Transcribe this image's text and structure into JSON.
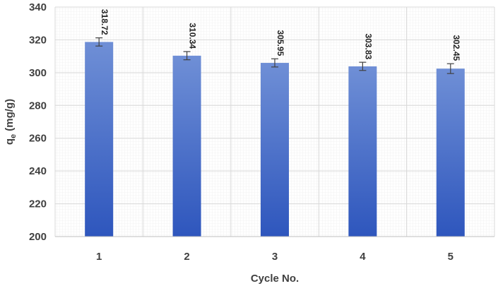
{
  "chart_data": {
    "type": "bar",
    "title": "",
    "xlabel": "Cycle No.",
    "ylabel": {
      "main": "q",
      "sub": "e",
      "rest": " (mg/g)"
    },
    "categories": [
      "1",
      "2",
      "3",
      "4",
      "5"
    ],
    "values": [
      318.72,
      310.34,
      305.95,
      303.83,
      302.45
    ],
    "data_labels": [
      "318.72",
      "310.34",
      "305.95",
      "303.83",
      "302.45"
    ],
    "error": [
      2.5,
      2.5,
      2.5,
      2.5,
      3.0
    ],
    "ylim": [
      200,
      340
    ],
    "yticks": [
      "200",
      "220",
      "240",
      "260",
      "280",
      "300",
      "320",
      "340"
    ],
    "grid": true,
    "colors": {
      "bar_top": "#6f8fd6",
      "bar_bottom": "#2e56bd",
      "grid": "#d9d9d9",
      "error_bar": "#404040"
    }
  }
}
